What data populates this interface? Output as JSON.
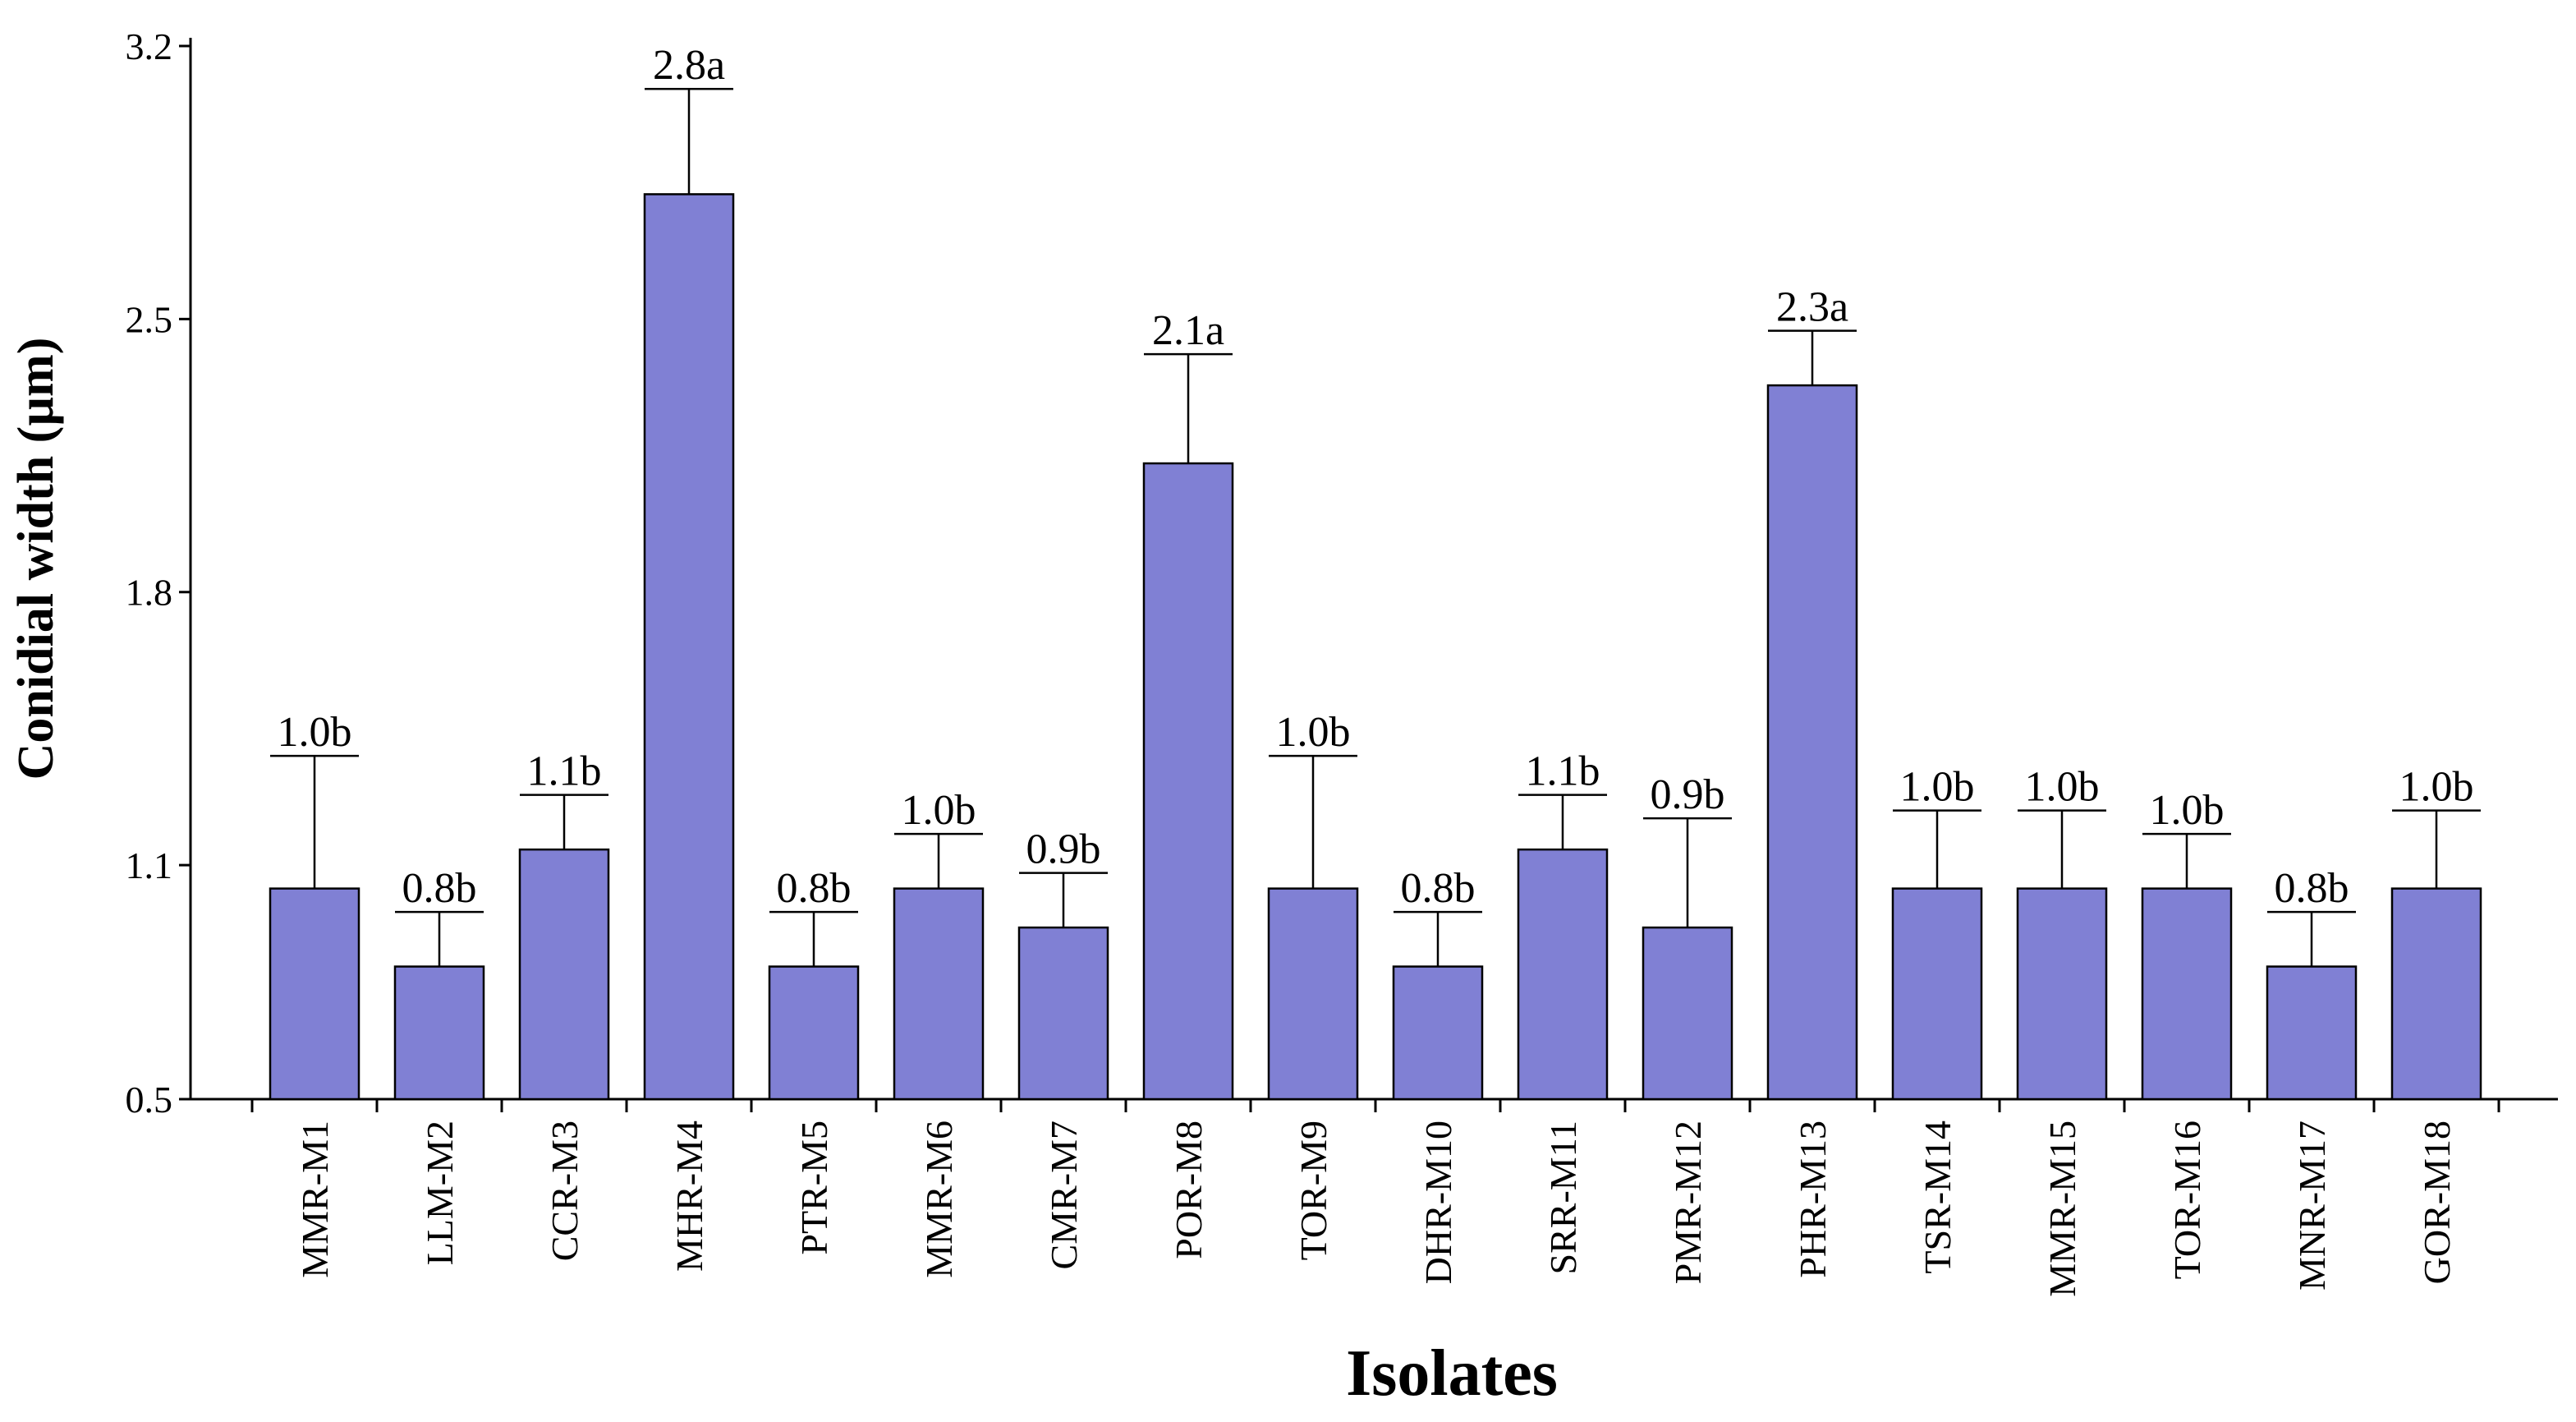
{
  "chart_data": {
    "type": "bar",
    "xlabel": "Isolates",
    "ylabel": "Conidial width (µm)",
    "ylim": [
      0.5,
      3.2
    ],
    "yticks": [
      "0.5",
      "1.1",
      "1.8",
      "2.5",
      "3.2"
    ],
    "bar_color": "#8080d4",
    "categories": [
      "MMR-M1",
      "LLM-M2",
      "CCR-M3",
      "MHR-M4",
      "PTR-M5",
      "MMR-M6",
      "CMR-M7",
      "POR-M8",
      "TOR-M9",
      "DHR-M10",
      "SRR-M11",
      "PMR-M12",
      "PHR-M13",
      "TSR-M14",
      "MMR-M15",
      "TOR-M16",
      "MNR-M17",
      "GOR-M18"
    ],
    "values": [
      1.04,
      0.84,
      1.14,
      2.82,
      0.84,
      1.04,
      0.94,
      2.13,
      1.04,
      0.84,
      1.14,
      0.94,
      2.33,
      1.04,
      1.04,
      1.04,
      0.84,
      1.04
    ],
    "error_upper": [
      1.38,
      0.98,
      1.28,
      3.09,
      0.98,
      1.18,
      1.08,
      2.41,
      1.38,
      0.98,
      1.28,
      1.22,
      2.47,
      1.24,
      1.24,
      1.18,
      0.98,
      1.24
    ],
    "labels": [
      "1.0b",
      "0.8b",
      "1.1b",
      "2.8a",
      "0.8b",
      "1.0b",
      "0.9b",
      "2.1a",
      "1.0b",
      "0.8b",
      "1.1b",
      "0.9b",
      "2.3a",
      "1.0b",
      "1.0b",
      "1.0b",
      "0.8b",
      "1.0b"
    ]
  }
}
